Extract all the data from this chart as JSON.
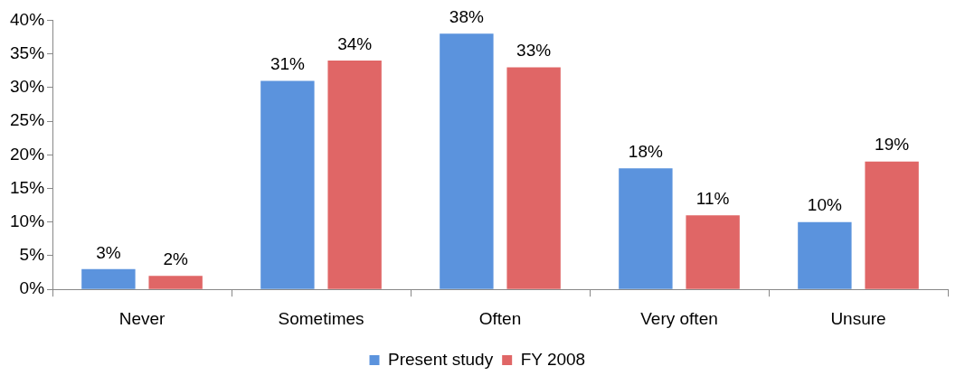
{
  "chart_data": {
    "type": "bar",
    "categories": [
      "Never",
      "Sometimes",
      "Often",
      "Very often",
      "Unsure"
    ],
    "series": [
      {
        "name": "Present study",
        "color": "#5b93dd",
        "values": [
          3,
          31,
          38,
          18,
          10
        ],
        "value_labels": [
          "3%",
          "31%",
          "38%",
          "18%",
          "10%"
        ]
      },
      {
        "name": "FY 2008",
        "color": "#e06666",
        "values": [
          2,
          34,
          33,
          11,
          19
        ],
        "value_labels": [
          "2%",
          "34%",
          "33%",
          "11%",
          "19%"
        ]
      }
    ],
    "ylim": [
      0,
      40
    ],
    "yticks": [
      {
        "value": 0,
        "label": "0%"
      },
      {
        "value": 5,
        "label": "5%"
      },
      {
        "value": 10,
        "label": "10%"
      },
      {
        "value": 15,
        "label": "15%"
      },
      {
        "value": 20,
        "label": "20%"
      },
      {
        "value": 25,
        "label": "25%"
      },
      {
        "value": 30,
        "label": "30%"
      },
      {
        "value": 35,
        "label": "35%"
      },
      {
        "value": 40,
        "label": "40%"
      }
    ],
    "grid": false,
    "legend": "bottom"
  }
}
